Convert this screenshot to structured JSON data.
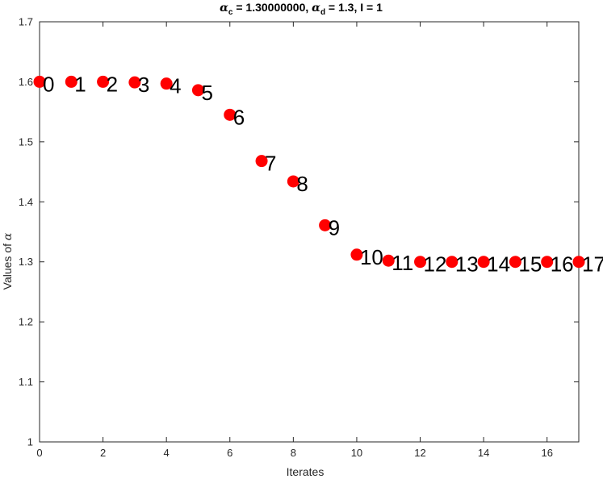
{
  "chart_data": {
    "type": "scatter",
    "title": {
      "alpha_glyph": "α",
      "sub_c": "c",
      "part1": " = 1.30000000,  ",
      "sub_d": "d",
      "part2": " = 1.3,  I = 1"
    },
    "xlabel": "Iterates",
    "ylabel_text": "Values of ",
    "ylabel_symbol": "α",
    "xlim": [
      0,
      17
    ],
    "ylim": [
      1,
      1.7
    ],
    "xticks": [
      0,
      2,
      4,
      6,
      8,
      10,
      12,
      14,
      16
    ],
    "xtick_labels": [
      "0",
      "2",
      "4",
      "6",
      "8",
      "10",
      "12",
      "14",
      "16"
    ],
    "yticks": [
      1,
      1.1,
      1.2,
      1.3,
      1.4,
      1.5,
      1.6,
      1.7
    ],
    "ytick_labels": [
      "1",
      "1.1",
      "1.2",
      "1.3",
      "1.4",
      "1.5",
      "1.6",
      "1.7"
    ],
    "grid": false,
    "marker_color": "#ff0000",
    "x": [
      0,
      1,
      2,
      3,
      4,
      5,
      6,
      7,
      8,
      9,
      10,
      11,
      12,
      13,
      14,
      15,
      16,
      17
    ],
    "y": [
      1.6,
      1.6,
      1.6,
      1.599,
      1.597,
      1.586,
      1.545,
      1.468,
      1.434,
      1.361,
      1.312,
      1.302,
      1.3,
      1.3,
      1.3,
      1.3,
      1.3,
      1.3
    ],
    "point_labels": [
      "0",
      "1",
      "2",
      "3",
      "4",
      "5",
      "6",
      "7",
      "8",
      "9",
      "10",
      "11",
      "12",
      "13",
      "14",
      "15",
      "16",
      "17"
    ]
  }
}
